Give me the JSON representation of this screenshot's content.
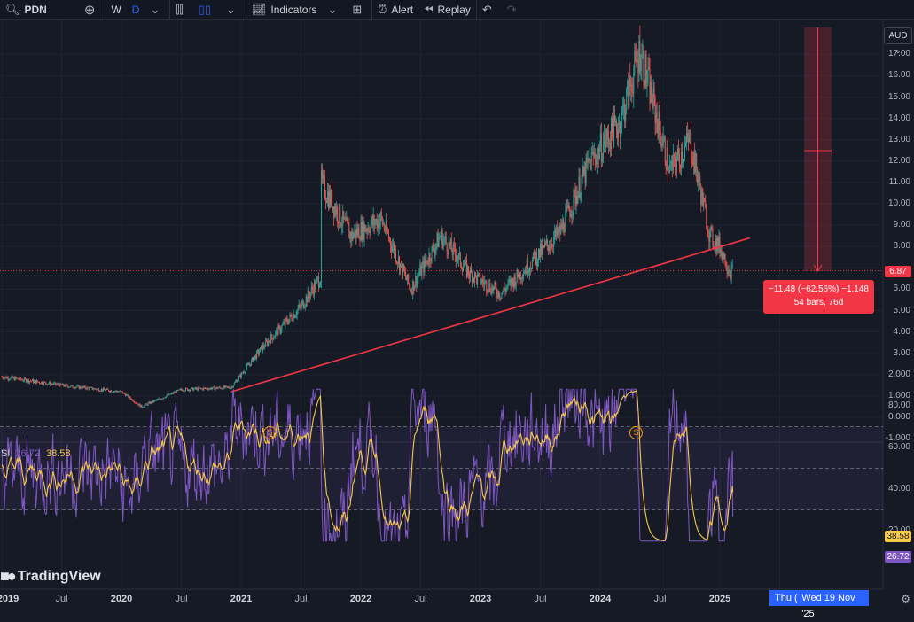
{
  "toolbar": {
    "symbol": "PDN",
    "interval_w": "W",
    "interval_d": "D",
    "indicators_label": "Indicators",
    "alert_label": "Alert",
    "replay_label": "Replay"
  },
  "price_axis": {
    "currency": "AUD",
    "labels": [
      "17.00",
      "16.00",
      "15.00",
      "14.00",
      "13.00",
      "12.00",
      "11.00",
      "10.00",
      "9.00",
      "8.00",
      "6.87",
      "6.00",
      "5.00",
      "4.00",
      "3.00",
      "2.000",
      "1.000",
      "0.000",
      "-1.000"
    ],
    "current_price": "6.87",
    "current_price_color": "#f23645"
  },
  "measure_tool": {
    "line1": "−11.48 (−62.56%) −1,148",
    "line2": "54 bars, 76d"
  },
  "rsi": {
    "name": "RSI",
    "value": "26.72",
    "ma_value": "38.58",
    "axis_labels": [
      "80.00",
      "60.00",
      "40.00",
      "20.00"
    ],
    "rsi_color": "#7e57c2",
    "ma_color": "#f7c948"
  },
  "time_axis": {
    "labels": [
      {
        "text": "2019",
        "year": true
      },
      {
        "text": "Jul",
        "year": false
      },
      {
        "text": "2020",
        "year": true
      },
      {
        "text": "Jul",
        "year": false
      },
      {
        "text": "2021",
        "year": true
      },
      {
        "text": "Jul",
        "year": false
      },
      {
        "text": "2022",
        "year": true
      },
      {
        "text": "Jul",
        "year": false
      },
      {
        "text": "2023",
        "year": true
      },
      {
        "text": "Jul",
        "year": false
      },
      {
        "text": "2024",
        "year": true
      },
      {
        "text": "Jul",
        "year": false
      },
      {
        "text": "2025",
        "year": true
      }
    ],
    "crosshair_partial": "Thu (",
    "crosshair_date": "Wed 19 Nov '25"
  },
  "brand": "TradingView",
  "chart_data": {
    "type": "candlestick",
    "symbol": "PDN",
    "currency": "AUD",
    "ylim": [
      -1,
      17.5
    ],
    "approx_close_path": [
      [
        "2019-01",
        1.9
      ],
      [
        "2019-07",
        1.5
      ],
      [
        "2020-01",
        1.2
      ],
      [
        "2020-03",
        0.5
      ],
      [
        "2020-07",
        1.3
      ],
      [
        "2020-12",
        1.4
      ],
      [
        "2021-03",
        3.2
      ],
      [
        "2021-07",
        5.2
      ],
      [
        "2021-09",
        6.6
      ],
      [
        "2021-09",
        11.0
      ],
      [
        "2021-12",
        8.5
      ],
      [
        "2022-03",
        9.3
      ],
      [
        "2022-06",
        6.0
      ],
      [
        "2022-09",
        8.5
      ],
      [
        "2022-12",
        6.7
      ],
      [
        "2023-03",
        5.8
      ],
      [
        "2023-06",
        7.2
      ],
      [
        "2023-09",
        8.7
      ],
      [
        "2023-12",
        12.0
      ],
      [
        "2024-03",
        13.8
      ],
      [
        "2024-05",
        17.2
      ],
      [
        "2024-08",
        11.5
      ],
      [
        "2024-10",
        13.0
      ],
      [
        "2024-12",
        8.5
      ],
      [
        "2025-01",
        8.0
      ],
      [
        "2025-02",
        6.87
      ]
    ],
    "trendline": [
      [
        "2020-12",
        1.2
      ],
      [
        "2025-04",
        8.4
      ]
    ],
    "measure": {
      "change": "−11.48",
      "percent": "−62.56%",
      "bars": "54 bars, 76d"
    },
    "rsi": {
      "last": 26.72,
      "ma": 38.58,
      "levels": [
        70,
        50,
        30
      ]
    }
  }
}
